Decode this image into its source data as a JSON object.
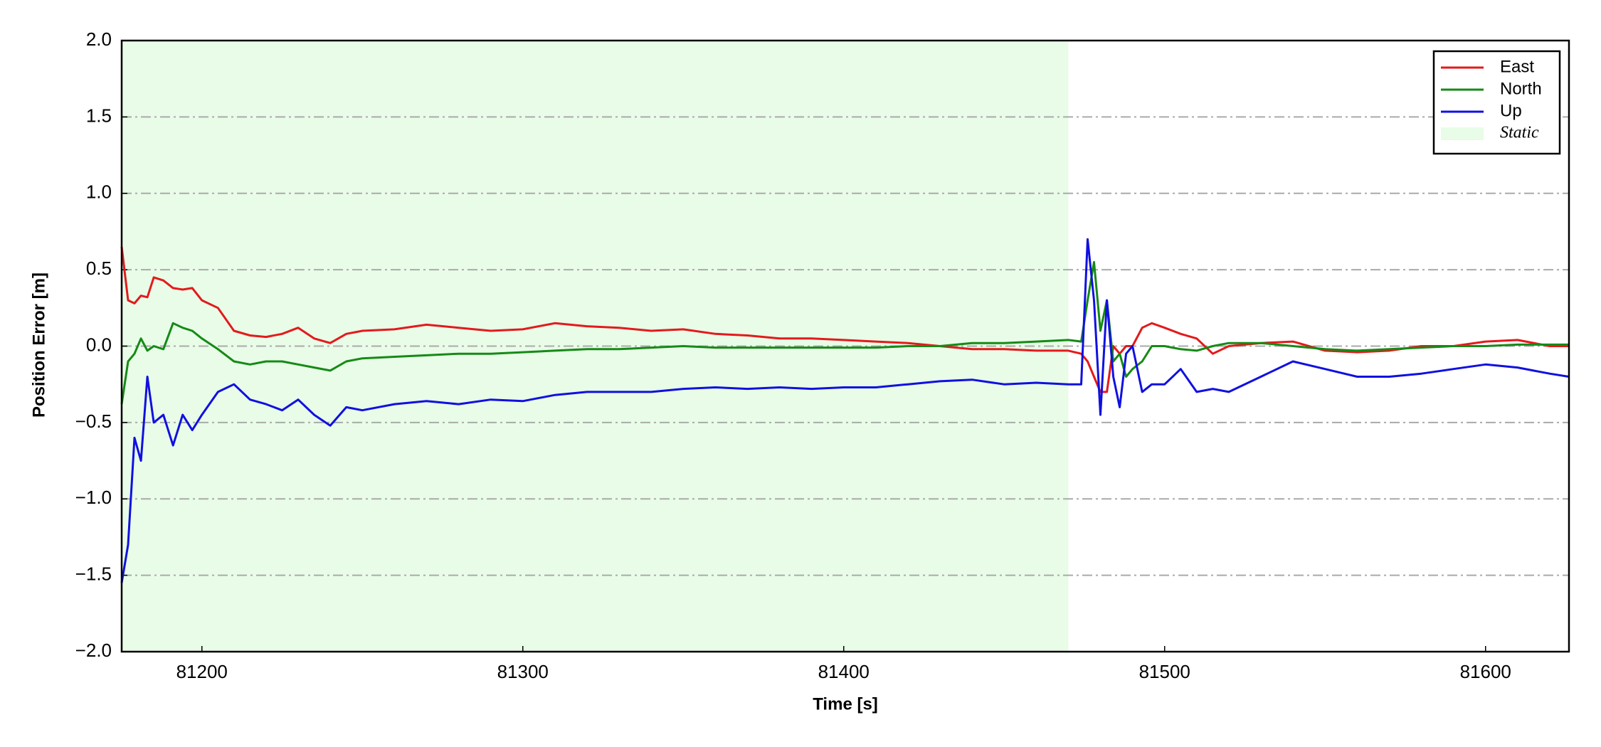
{
  "chart_data": {
    "type": "line",
    "xlabel": "Time [s]",
    "ylabel": "Position Error [m]",
    "xlim": [
      81175,
      81626
    ],
    "ylim": [
      -2.0,
      2.0
    ],
    "xticks": [
      81200,
      81300,
      81400,
      81500,
      81600
    ],
    "yticks": [
      {
        "value": -2.0,
        "label": "−2.0"
      },
      {
        "value": -1.5,
        "label": "−1.5"
      },
      {
        "value": -1.0,
        "label": "−1.0"
      },
      {
        "value": -0.5,
        "label": "−0.5"
      },
      {
        "value": 0.0,
        "label": "0.0"
      },
      0.5,
      {
        "value": 1.0,
        "label": "1.0"
      },
      1.5,
      {
        "value": 2.0,
        "label": "2.0"
      }
    ],
    "grid": true,
    "legend": "upper right",
    "x": [
      81175,
      81177,
      81179,
      81181,
      81183,
      81185,
      81188,
      81191,
      81194,
      81197,
      81200,
      81205,
      81210,
      81215,
      81220,
      81225,
      81230,
      81235,
      81240,
      81245,
      81250,
      81260,
      81270,
      81280,
      81290,
      81300,
      81310,
      81320,
      81330,
      81340,
      81350,
      81360,
      81370,
      81380,
      81390,
      81400,
      81410,
      81420,
      81430,
      81440,
      81450,
      81460,
      81470,
      81474,
      81476,
      81478,
      81480,
      81482,
      81484,
      81486,
      81488,
      81490,
      81493,
      81496,
      81500,
      81505,
      81510,
      81515,
      81520,
      81530,
      81540,
      81550,
      81560,
      81570,
      81580,
      81590,
      81600,
      81610,
      81620,
      81626
    ],
    "series": [
      {
        "name": "East",
        "color": "#e31a1c",
        "values": [
          0.65,
          0.3,
          0.28,
          0.33,
          0.32,
          0.45,
          0.43,
          0.38,
          0.37,
          0.38,
          0.3,
          0.25,
          0.1,
          0.07,
          0.06,
          0.08,
          0.12,
          0.05,
          0.02,
          0.08,
          0.1,
          0.11,
          0.14,
          0.12,
          0.1,
          0.11,
          0.15,
          0.13,
          0.12,
          0.1,
          0.11,
          0.08,
          0.07,
          0.05,
          0.05,
          0.04,
          0.03,
          0.02,
          0.0,
          -0.02,
          -0.02,
          -0.03,
          -0.03,
          -0.05,
          -0.1,
          -0.2,
          -0.3,
          -0.3,
          0.0,
          -0.05,
          0.0,
          0.0,
          0.12,
          0.15,
          0.12,
          0.08,
          0.05,
          -0.05,
          0.0,
          0.02,
          0.03,
          -0.03,
          -0.04,
          -0.03,
          0.0,
          0.0,
          0.03,
          0.04,
          0.0,
          0.0
        ]
      },
      {
        "name": "North",
        "color": "#168a16",
        "values": [
          -0.38,
          -0.1,
          -0.05,
          0.05,
          -0.03,
          0.0,
          -0.02,
          0.15,
          0.12,
          0.1,
          0.05,
          -0.02,
          -0.1,
          -0.12,
          -0.1,
          -0.1,
          -0.12,
          -0.14,
          -0.16,
          -0.1,
          -0.08,
          -0.07,
          -0.06,
          -0.05,
          -0.05,
          -0.04,
          -0.03,
          -0.02,
          -0.02,
          -0.01,
          0.0,
          -0.01,
          -0.01,
          -0.01,
          -0.01,
          -0.01,
          -0.01,
          0.0,
          0.0,
          0.02,
          0.02,
          0.03,
          0.04,
          0.03,
          0.3,
          0.55,
          0.1,
          0.3,
          -0.1,
          -0.05,
          -0.2,
          -0.15,
          -0.1,
          0.0,
          0.0,
          -0.02,
          -0.03,
          0.0,
          0.02,
          0.02,
          0.0,
          -0.02,
          -0.03,
          -0.02,
          -0.01,
          0.0,
          0.0,
          0.01,
          0.01,
          0.01
        ]
      },
      {
        "name": "Up",
        "color": "#1010e0",
        "values": [
          -1.55,
          -1.3,
          -0.6,
          -0.75,
          -0.2,
          -0.5,
          -0.45,
          -0.65,
          -0.45,
          -0.55,
          -0.45,
          -0.3,
          -0.25,
          -0.35,
          -0.38,
          -0.42,
          -0.35,
          -0.45,
          -0.52,
          -0.4,
          -0.42,
          -0.38,
          -0.36,
          -0.38,
          -0.35,
          -0.36,
          -0.32,
          -0.3,
          -0.3,
          -0.3,
          -0.28,
          -0.27,
          -0.28,
          -0.27,
          -0.28,
          -0.27,
          -0.27,
          -0.25,
          -0.23,
          -0.22,
          -0.25,
          -0.24,
          -0.25,
          -0.25,
          0.7,
          0.3,
          -0.45,
          0.3,
          -0.2,
          -0.4,
          -0.05,
          0.0,
          -0.3,
          -0.25,
          -0.25,
          -0.15,
          -0.3,
          -0.28,
          -0.3,
          -0.2,
          -0.1,
          -0.15,
          -0.2,
          -0.2,
          -0.18,
          -0.15,
          -0.12,
          -0.14,
          -0.18,
          -0.2
        ]
      }
    ],
    "region": {
      "name": "Static",
      "color": "#e8fce8",
      "x_range": [
        81175,
        81470
      ]
    }
  }
}
